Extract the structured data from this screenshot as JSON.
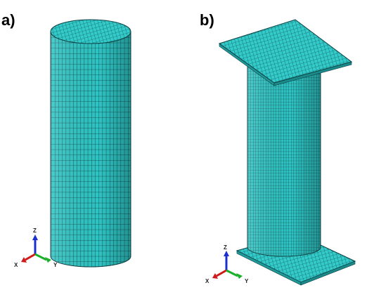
{
  "panels": [
    {
      "label": "a)",
      "axes": {
        "z": "Z",
        "x": "X",
        "y": "Y"
      }
    },
    {
      "label": "b)",
      "axes": {
        "z": "Z",
        "x": "X",
        "y": "Y"
      }
    }
  ]
}
